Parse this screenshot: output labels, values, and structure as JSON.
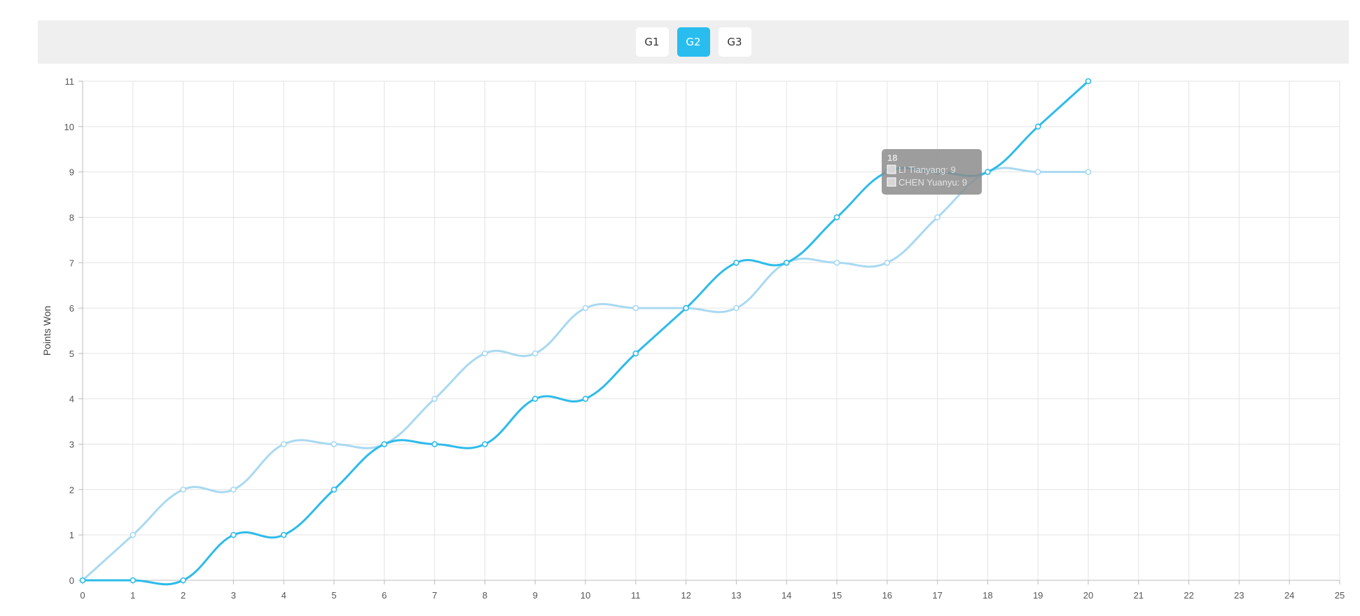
{
  "game_tabs": [
    {
      "label": "G1",
      "active": false
    },
    {
      "label": "G2",
      "active": true
    },
    {
      "label": "G3",
      "active": false
    }
  ],
  "colors": {
    "accent": "#29bdef",
    "series_dark": "#2dbbea",
    "series_light": "#a9d9f1",
    "grid": "#e3e3e3",
    "tooltip_bg": "#8c8c8c"
  },
  "chart_data": {
    "type": "line",
    "title": "",
    "xlabel": "",
    "ylabel": "Points Won",
    "xlim": [
      0,
      25
    ],
    "ylim": [
      0,
      11
    ],
    "x_ticks": [
      0,
      1,
      2,
      3,
      4,
      5,
      6,
      7,
      8,
      9,
      10,
      11,
      12,
      13,
      14,
      15,
      16,
      17,
      18,
      19,
      20,
      21,
      22,
      23,
      24,
      25
    ],
    "y_ticks": [
      0,
      1,
      2,
      3,
      4,
      5,
      6,
      7,
      8,
      9,
      10,
      11
    ],
    "grid": true,
    "smooth": true,
    "x": [
      0,
      1,
      2,
      3,
      4,
      5,
      6,
      7,
      8,
      9,
      10,
      11,
      12,
      13,
      14,
      15,
      16,
      17,
      18,
      19,
      20
    ],
    "series": [
      {
        "name": "LI Tianyang",
        "color": "#2dbbea",
        "values": [
          0,
          0,
          0,
          1,
          1,
          2,
          3,
          3,
          3,
          4,
          4,
          5,
          6,
          7,
          7,
          8,
          9,
          9,
          9,
          10,
          11
        ]
      },
      {
        "name": "CHEN Yuanyu",
        "color": "#a9d9f1",
        "values": [
          0,
          1,
          2,
          2,
          3,
          3,
          3,
          4,
          5,
          5,
          6,
          6,
          6,
          6,
          7,
          7,
          7,
          8,
          9,
          9,
          9
        ]
      }
    ],
    "tooltip": {
      "x_label": "18",
      "entries": [
        {
          "name": "LI Tianyang",
          "value": "9"
        },
        {
          "name": "CHEN Yuanyu",
          "value": "9"
        }
      ]
    }
  }
}
